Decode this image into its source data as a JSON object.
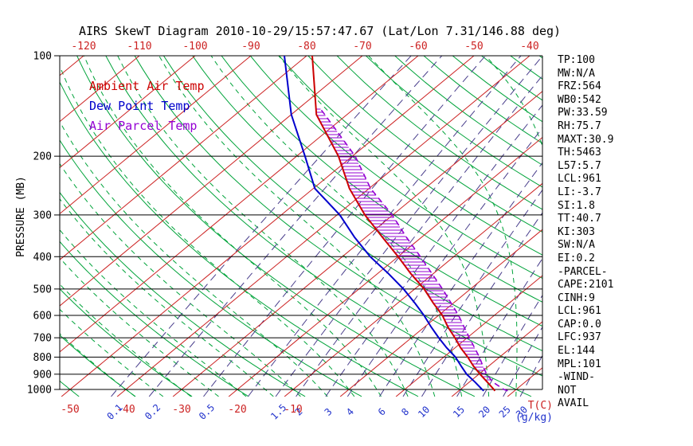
{
  "title": "AIRS SkewT Diagram 2010-10-29/15:57:47.67 (Lat/Lon 7.31/146.88 deg)",
  "chart_data": {
    "type": "skewt",
    "title": "AIRS SkewT Diagram 2010-10-29/15:57:47.67 (Lat/Lon 7.31/146.88 deg)",
    "axes": {
      "y_label": "PRESSURE (MB)",
      "y_scale": "log",
      "y_ticks": [
        100,
        200,
        300,
        400,
        500,
        600,
        700,
        800,
        900,
        1000
      ],
      "isobars": [
        100,
        200,
        300,
        400,
        500,
        600,
        700,
        800,
        900,
        1000
      ],
      "top_temp_labels": [
        -120,
        -110,
        -100,
        -90,
        -80,
        -70,
        -60,
        -50,
        -40
      ],
      "bottom_temp_labels": [
        -50,
        -40,
        -30,
        -20,
        -10
      ],
      "temp_unit_label": "T(C)",
      "mixing_unit_label": "(g/kg)",
      "isotherms": {
        "min": -130,
        "max": 40,
        "step": 10
      },
      "dry_adiabats": {
        "min": -60,
        "max": 200,
        "step": 10
      },
      "moist_adiabats": {
        "min": -40,
        "max": 40,
        "step": 5
      },
      "mixing_ratios": [
        0.1,
        0.2,
        0.5,
        1,
        1.5,
        2,
        3,
        4,
        6,
        8,
        10,
        15,
        20,
        25,
        30
      ],
      "mixing_ratio_labels": [
        0.1,
        0.2,
        0.5,
        1.5,
        2,
        3,
        4,
        6,
        8,
        10,
        15,
        20,
        25,
        30
      ]
    },
    "series": [
      {
        "name": "Ambient Air Temp",
        "color": "#cc0000",
        "style": "solid",
        "pressure_mb": [
          1010,
          1000,
          950,
          900,
          850,
          800,
          750,
          700,
          650,
          600,
          550,
          500,
          450,
          400,
          350,
          300,
          250,
          200,
          150,
          100
        ],
        "temp_c": [
          26.5,
          26.0,
          23.2,
          20.2,
          17.2,
          14.3,
          11.0,
          7.8,
          4.2,
          0.7,
          -3.7,
          -8.3,
          -14.0,
          -20.0,
          -27.0,
          -35.0,
          -43.5,
          -52.5,
          -65.5,
          -79.0
        ]
      },
      {
        "name": "Dew Point Temp",
        "color": "#0000cc",
        "style": "solid",
        "pressure_mb": [
          1010,
          1000,
          950,
          900,
          850,
          800,
          750,
          700,
          650,
          600,
          550,
          500,
          450,
          400,
          350,
          300,
          250,
          200,
          150,
          100
        ],
        "temp_c": [
          24.5,
          23.9,
          21.0,
          17.8,
          15.0,
          12.1,
          8.5,
          4.9,
          1.2,
          -2.6,
          -7.0,
          -12.0,
          -18.0,
          -25.0,
          -32.0,
          -39.5,
          -49.7,
          -58.5,
          -70.0,
          -84.0
        ]
      },
      {
        "name": "Air Parcel Temp",
        "color": "#9400d3",
        "style": "dashed",
        "pressure_mb": [
          1010,
          1000,
          950,
          900,
          850,
          800,
          750,
          700,
          650,
          600,
          550,
          500,
          450,
          400,
          350,
          300,
          250,
          200,
          150,
          144
        ],
        "temp_c": [
          28.8,
          27.8,
          24.2,
          21.4,
          18.9,
          16.4,
          13.5,
          10.4,
          7.1,
          3.6,
          -0.5,
          -5.0,
          -10.2,
          -16.0,
          -22.7,
          -30.1,
          -39.7,
          -49.5,
          -64.0,
          -66.1
        ]
      }
    ],
    "cape_hatch": {
      "p_top": 144,
      "p_bottom": 940,
      "between": [
        "Ambient Air Temp",
        "Air Parcel Temp"
      ]
    }
  },
  "legend": {
    "items": [
      {
        "label": "Ambient Air Temp",
        "color": "#cc0000"
      },
      {
        "label": "Dew Point Temp",
        "color": "#0000cc"
      },
      {
        "label": "Air Parcel Temp",
        "color": "#9400d3"
      }
    ]
  },
  "stats_panel": {
    "lines": [
      "TP:100",
      "MW:N/A",
      "FRZ:564",
      "WB0:542",
      "PW:33.59",
      "RH:75.7",
      "MAXT:30.9",
      "TH:5463",
      "L57:5.7",
      "LCL:961",
      "LI:-3.7",
      "SI:1.8",
      "TT:40.7",
      "KI:303",
      "SW:N/A",
      "EI:0.2",
      "-PARCEL-",
      "CAPE:2101",
      "CINH:9",
      "LCL:961",
      "CAP:0.0",
      "LFC:937",
      "EL:144",
      "MPL:101",
      "-WIND-",
      "NOT",
      "AVAIL"
    ]
  },
  "colors": {
    "background": "#ffffff",
    "frame": "#000000",
    "isobar": "#000000",
    "isotherm": "#cc2222",
    "adiabat": "#00a33a",
    "mixing_line": "#483d8b",
    "ambient": "#cc0000",
    "dewpoint": "#0000cc",
    "parcel": "#9400d3",
    "hatch": "#9400d3",
    "pressure_labels": "#000000",
    "top_temp_labels": "#cc2222",
    "bottom_temp_labels": "#cc2222",
    "mixing_labels": "#2233cc"
  }
}
